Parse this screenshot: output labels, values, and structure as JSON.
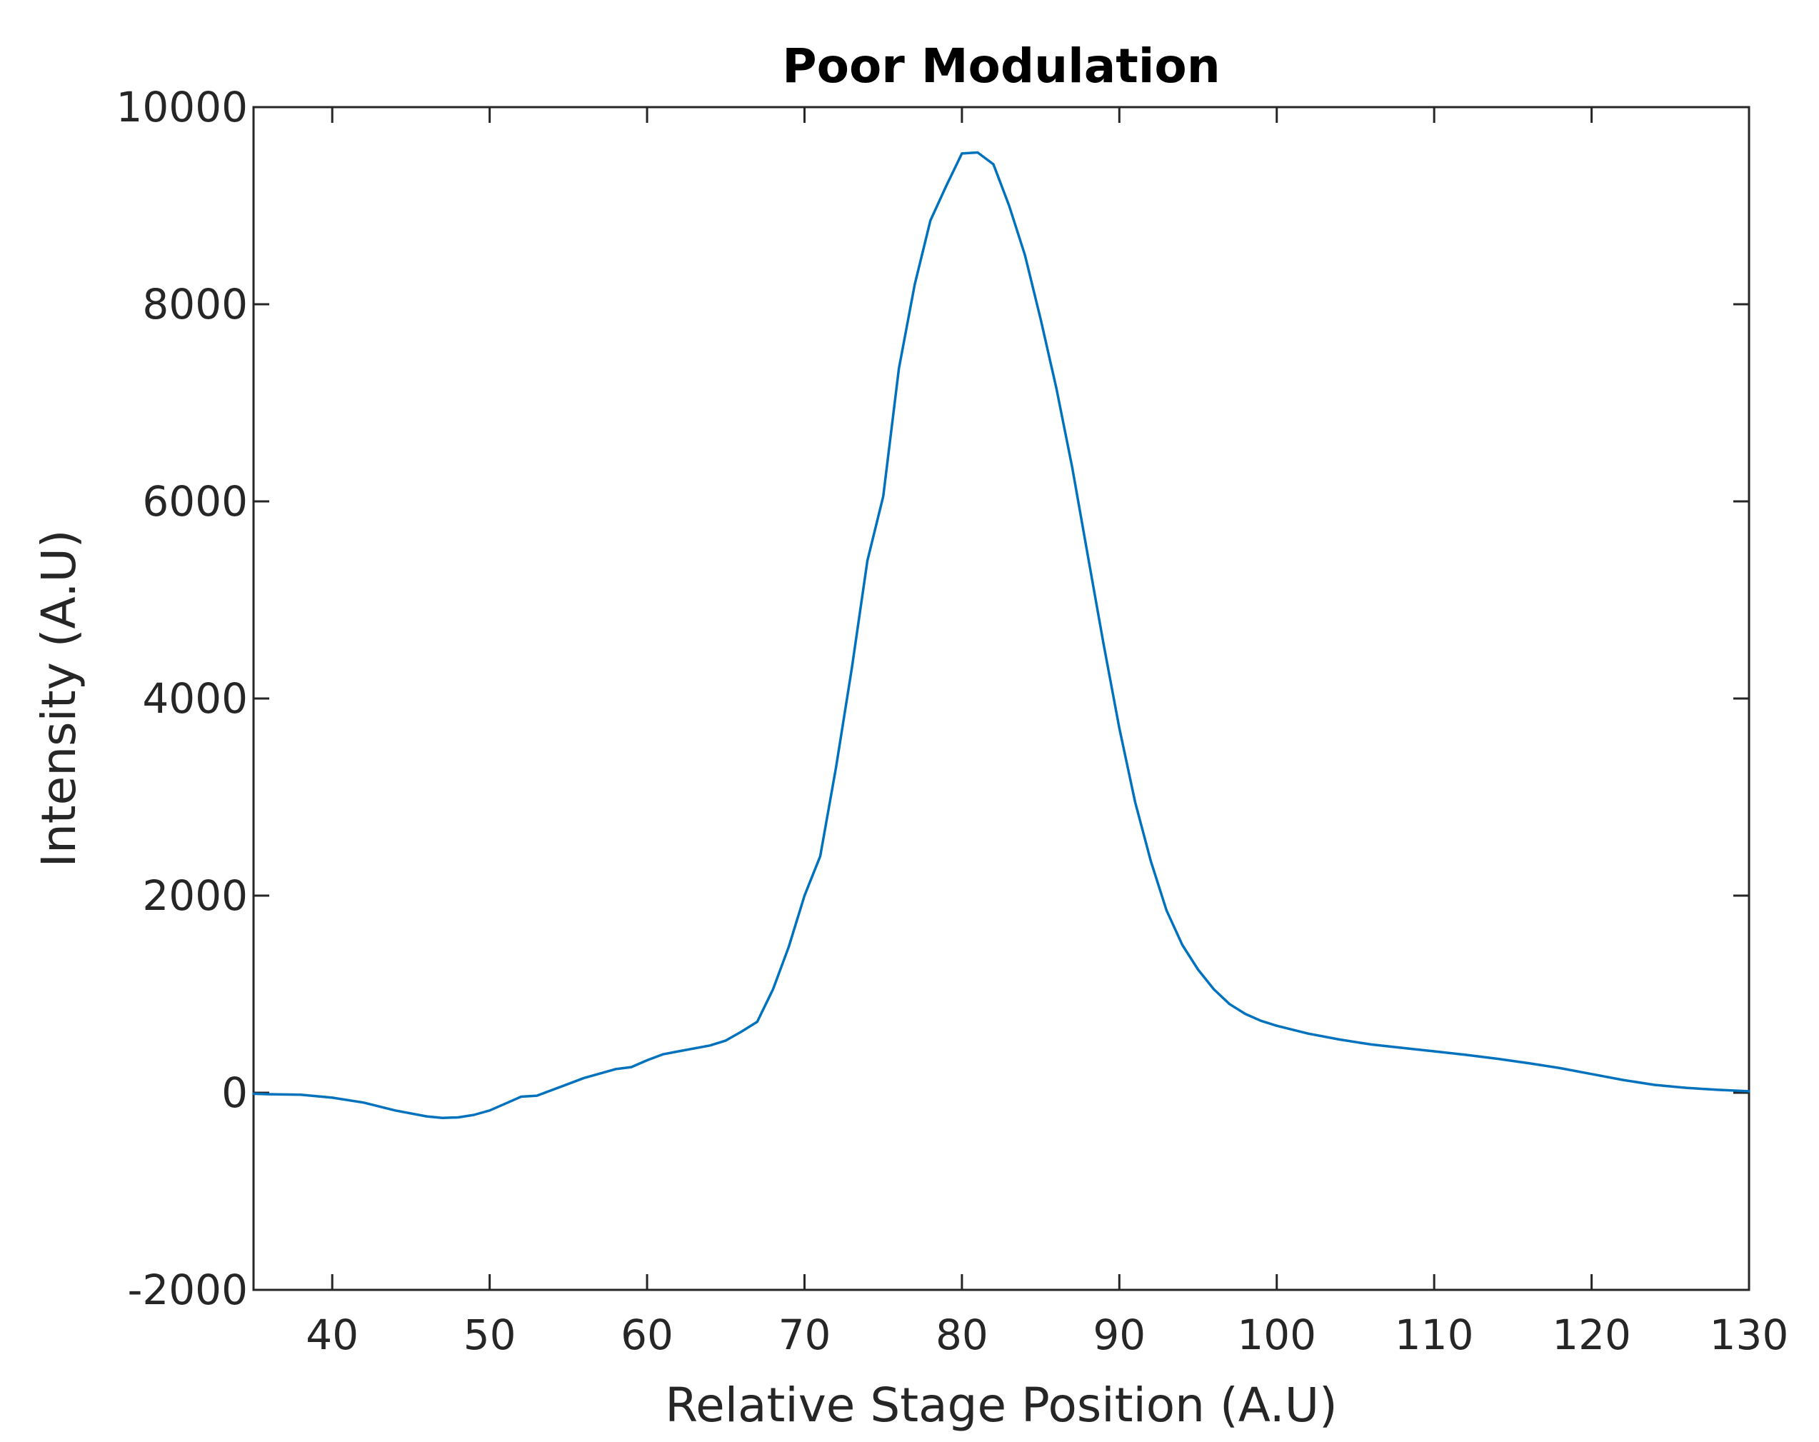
{
  "chart_data": {
    "type": "line",
    "title": "Poor Modulation",
    "xlabel": "Relative Stage Position (A.U)",
    "ylabel": "Intensity (A.U)",
    "xlim": [
      35,
      130
    ],
    "ylim": [
      -2000,
      10000
    ],
    "xticks": [
      40,
      50,
      60,
      70,
      80,
      90,
      100,
      110,
      120,
      130
    ],
    "yticks": [
      -2000,
      0,
      2000,
      4000,
      6000,
      8000,
      10000
    ],
    "grid": false,
    "box": true,
    "series": [
      {
        "color": "#0072bd",
        "x": [
          35,
          36,
          38,
          40,
          42,
          44,
          46,
          47,
          48,
          49,
          50,
          51,
          52,
          53,
          54,
          56,
          58,
          59,
          60,
          61,
          62,
          64,
          65,
          66,
          67,
          68,
          69,
          70,
          71,
          72,
          73,
          74,
          75,
          76,
          77,
          78,
          79,
          80,
          81,
          82,
          83,
          84,
          85,
          86,
          87,
          88,
          89,
          90,
          91,
          92,
          93,
          94,
          95,
          96,
          97,
          98,
          99,
          100,
          102,
          104,
          106,
          108,
          110,
          112,
          114,
          116,
          118,
          120,
          122,
          124,
          126,
          128,
          130
        ],
        "y": [
          -10,
          -15,
          -20,
          -50,
          -100,
          -180,
          -240,
          -255,
          -250,
          -225,
          -180,
          -110,
          -40,
          -30,
          30,
          150,
          240,
          260,
          330,
          390,
          420,
          480,
          530,
          620,
          720,
          1050,
          1480,
          2000,
          2400,
          3300,
          4300,
          5400,
          6050,
          7350,
          8200,
          8850,
          9200,
          9530,
          9540,
          9420,
          9000,
          8500,
          7850,
          7150,
          6350,
          5450,
          4550,
          3700,
          2950,
          2350,
          1850,
          1500,
          1250,
          1050,
          900,
          800,
          730,
          680,
          600,
          540,
          490,
          455,
          420,
          385,
          345,
          300,
          250,
          190,
          130,
          80,
          50,
          30,
          15
        ]
      }
    ]
  }
}
